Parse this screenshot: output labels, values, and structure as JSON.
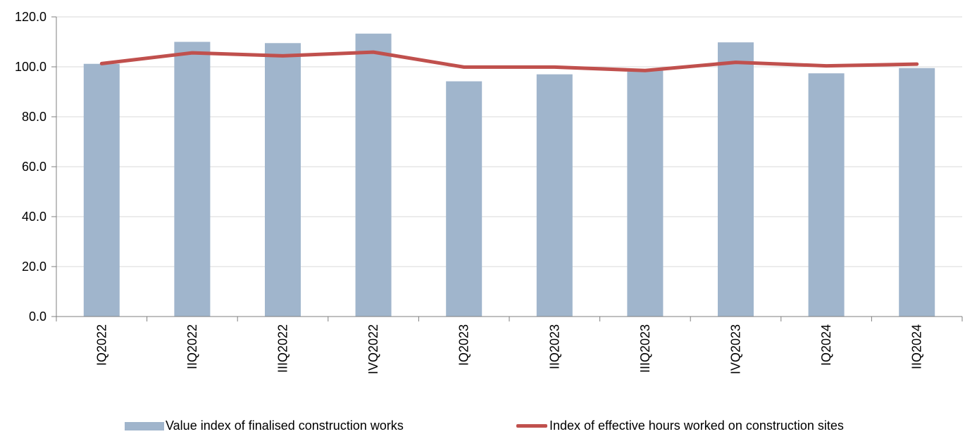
{
  "chart_data": {
    "type": "bar",
    "categories": [
      "IQ2022",
      "IIQ2022",
      "IIIQ2022",
      "IVQ2022",
      "IQ2023",
      "IIQ2023",
      "IIIQ2023",
      "IVQ2023",
      "IQ2024",
      "IIQ2024"
    ],
    "series": [
      {
        "name": "Value index of finalised construction works",
        "type": "bar",
        "color": "#a0b5cc",
        "values": [
          101.2,
          110.0,
          109.5,
          113.3,
          94.2,
          97.0,
          98.8,
          109.8,
          97.4,
          99.5
        ]
      },
      {
        "name": "Index of effective hours worked on construction sites",
        "type": "line",
        "color": "#c0504d",
        "values": [
          101.3,
          105.6,
          104.4,
          105.9,
          99.9,
          99.9,
          98.5,
          101.8,
          100.4,
          101.1
        ]
      }
    ],
    "ylim": [
      0,
      120
    ],
    "yticks": [
      "0.0",
      "20.0",
      "40.0",
      "60.0",
      "80.0",
      "100.0",
      "120.0"
    ],
    "grid": true,
    "legend_position": "bottom"
  }
}
